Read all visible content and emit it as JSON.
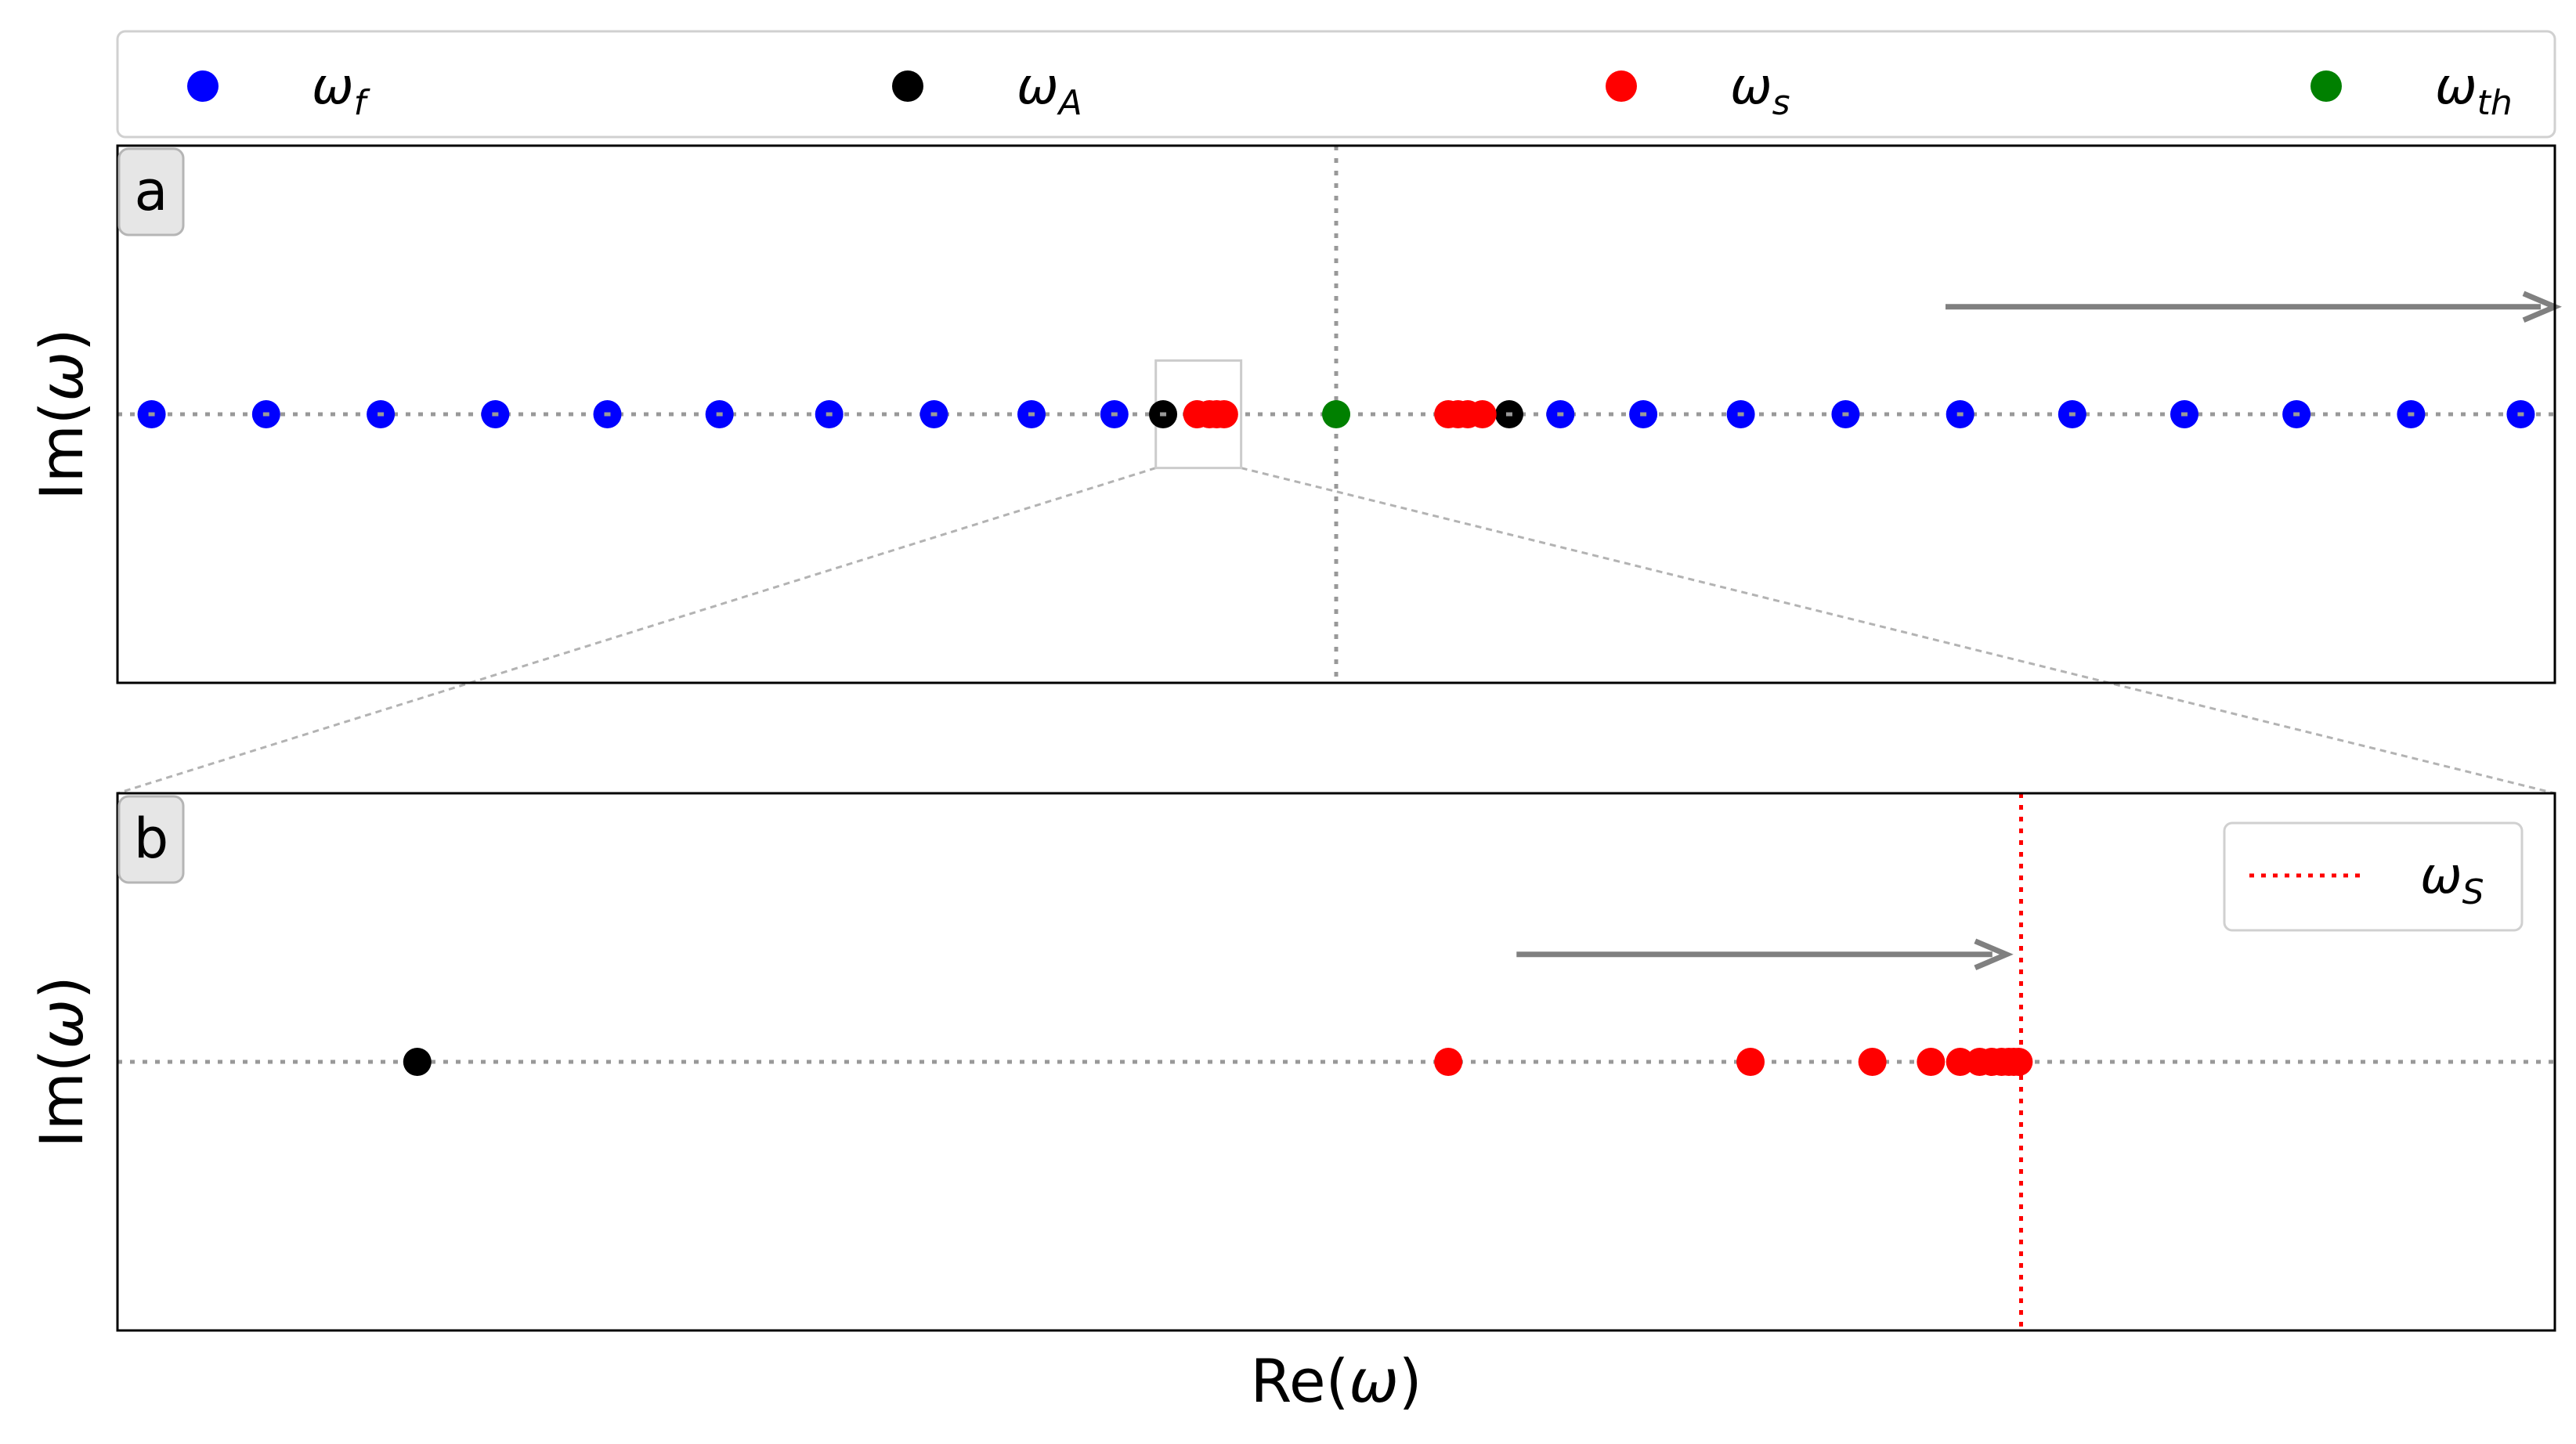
{
  "figure": {
    "xlabel_main": "Re(",
    "xlabel_omega": "ω",
    "xlabel_close": ")",
    "ylabel_main": "Im(",
    "ylabel_omega": "ω",
    "ylabel_close": ")"
  },
  "legend": {
    "entries": [
      {
        "symbol": "ω",
        "sub": "f",
        "color": "#0000ff"
      },
      {
        "symbol": "ω",
        "sub": "A",
        "color": "#000000"
      },
      {
        "symbol": "ω",
        "sub": "s",
        "color": "#ff0000"
      },
      {
        "symbol": "ω",
        "sub": "th",
        "color": "#008000"
      }
    ]
  },
  "chart_data": [
    {
      "type": "scatter",
      "panel_label": "a",
      "xlim": [
        0,
        1000
      ],
      "ylim": [
        -1,
        1
      ],
      "grid": false,
      "reference_lines": {
        "horizontal_y": 0,
        "vertical_x": 500
      },
      "arrow": {
        "x_from": 750,
        "x_to": 1000,
        "y": 0.4
      },
      "zoom_box": {
        "x": [
          426,
          461
        ],
        "y": [
          -0.2,
          0.2
        ]
      },
      "series": [
        {
          "key": "f",
          "color": "#0000ff",
          "x": [
            14,
            61,
            108,
            155,
            201,
            247,
            292,
            335,
            375,
            409,
            592,
            626,
            666,
            709,
            756,
            802,
            848,
            894,
            941,
            986
          ],
          "y": [
            0,
            0,
            0,
            0,
            0,
            0,
            0,
            0,
            0,
            0,
            0,
            0,
            0,
            0,
            0,
            0,
            0,
            0,
            0,
            0
          ]
        },
        {
          "key": "A",
          "color": "#000000",
          "x": [
            429,
            571
          ],
          "y": [
            0,
            0
          ]
        },
        {
          "key": "s",
          "color": "#ff0000",
          "x": [
            443,
            448,
            451,
            454,
            546,
            550,
            554,
            560
          ],
          "y": [
            0,
            0,
            0,
            0,
            0,
            0,
            0,
            0
          ]
        },
        {
          "key": "th",
          "color": "#008000",
          "x": [
            500
          ],
          "y": [
            0
          ]
        }
      ]
    },
    {
      "type": "scatter",
      "panel_label": "b",
      "xlim": [
        0,
        1000
      ],
      "ylim": [
        -1,
        1
      ],
      "grid": false,
      "reference_lines": {
        "horizontal_y": 0
      },
      "threshold_line": {
        "x": 781,
        "color": "#ff0000",
        "legend": {
          "symbol": "ω",
          "sub": "S"
        }
      },
      "arrow": {
        "x_from": 574,
        "x_to": 775,
        "y": 0.4
      },
      "series": [
        {
          "key": "A",
          "color": "#000000",
          "x": [
            123
          ],
          "y": [
            0
          ]
        },
        {
          "key": "s",
          "color": "#ff0000",
          "x": [
            546,
            670,
            720,
            744,
            756,
            764,
            769,
            773,
            776,
            778,
            780
          ],
          "y": [
            0,
            0,
            0,
            0,
            0,
            0,
            0,
            0,
            0,
            0,
            0
          ]
        }
      ]
    }
  ]
}
